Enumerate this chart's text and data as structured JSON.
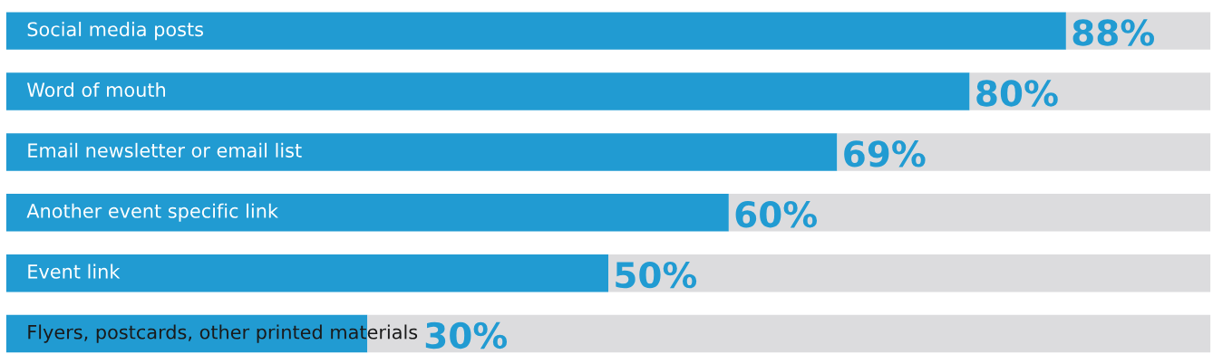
{
  "chart_data": {
    "type": "bar",
    "orientation": "horizontal",
    "stacked": true,
    "categories": [
      "Social media posts",
      "Word of mouth",
      "Email newsletter or email list",
      "Another event specific link",
      "Event link",
      "Flyers, postcards, other printed materials"
    ],
    "series": [
      {
        "color": "#219bd2",
        "values": [
          88,
          80,
          69,
          60,
          50,
          30
        ],
        "value_labels": [
          "88%",
          "80%",
          "69%",
          "60%",
          "50%",
          "30%"
        ]
      },
      {
        "color": "#dcdcde",
        "values": [
          12,
          20,
          31,
          40,
          50,
          70
        ]
      }
    ],
    "xlim": [
      0,
      100
    ],
    "legend": false
  }
}
